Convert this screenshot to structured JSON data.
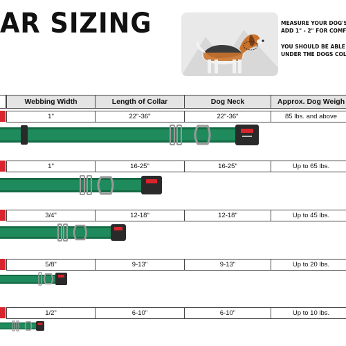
{
  "title": "AR SIZING",
  "notes": {
    "measure_line1": "MEASURE YOUR DOG'S N",
    "measure_line2": "ADD 1\" - 2\" FOR COMF",
    "fit_line1": "YOU SHOULD BE ABLE TO",
    "fit_line2": "UNDER THE DOGS COLLA"
  },
  "table": {
    "headers": [
      "Webbing Width",
      "Length of Collar",
      "Dog Neck",
      "Approx. Dog Weigh"
    ],
    "rows": [
      {
        "webbing": "1\"",
        "length": "22\"-36\"",
        "neck": "22\"-36\"",
        "weight": "85 lbs. and above"
      },
      {
        "webbing": "1\"",
        "length": "16-25\"",
        "neck": "16-25\"",
        "weight": "Up to 65 lbs."
      },
      {
        "webbing": "3/4\"",
        "length": "12-18\"",
        "neck": "12-18\"",
        "weight": "Up to 45 lbs."
      },
      {
        "webbing": "5/8\"",
        "length": "9-13\"",
        "neck": "9-13\"",
        "weight": "Up to 20 lbs."
      },
      {
        "webbing": "1/2\"",
        "length": "6-10\"",
        "neck": "6-10\"",
        "weight": "Up to 10 lbs."
      }
    ]
  },
  "colors": {
    "webbing": "#1f8a5c",
    "webbing_dark": "#146a45",
    "accent_red": "#d9232d",
    "buckle": "#2a2a2a"
  }
}
